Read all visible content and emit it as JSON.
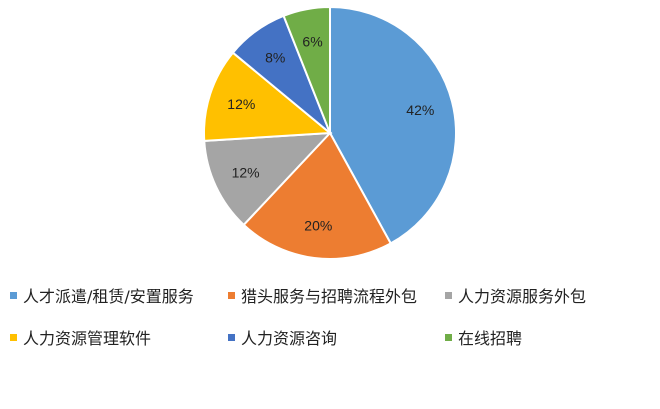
{
  "chart_data": {
    "type": "pie",
    "title": "",
    "start": "top",
    "direction": "clockwise",
    "legend_position": "bottom",
    "slices": [
      {
        "label": "人才派遣/租赁/安置服务",
        "value": 42,
        "data_label": "42%",
        "color": "#5B9BD5"
      },
      {
        "label": "猎头服务与招聘流程外包",
        "value": 20,
        "data_label": "20%",
        "color": "#ED7D31"
      },
      {
        "label": "人力资源服务外包",
        "value": 12,
        "data_label": "12%",
        "color": "#A5A5A5"
      },
      {
        "label": "人力资源管理软件",
        "value": 12,
        "data_label": "12%",
        "color": "#FFC000"
      },
      {
        "label": "人力资源咨询",
        "value": 8,
        "data_label": "8%",
        "color": "#4472C4"
      },
      {
        "label": "在线招聘",
        "value": 6,
        "data_label": "6%",
        "color": "#70AD47"
      }
    ]
  }
}
